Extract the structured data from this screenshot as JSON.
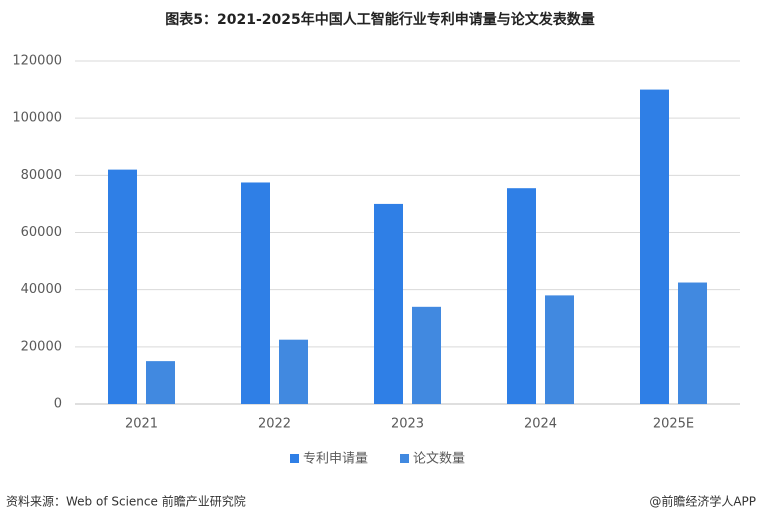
{
  "chart_data": {
    "type": "bar",
    "title": "图表5：2021-2025年中国人工智能行业专利申请量与论文发表数量",
    "categories": [
      "2021",
      "2022",
      "2023",
      "2024",
      "2025E"
    ],
    "series": [
      {
        "name": "专利申请量",
        "color": "#2f7fe6",
        "values": [
          82000,
          77500,
          70000,
          75500,
          110000
        ]
      },
      {
        "name": "论文数量",
        "color": "#4189e0",
        "values": [
          15000,
          22500,
          34000,
          38000,
          42500
        ]
      }
    ],
    "ylim": [
      0,
      120000
    ],
    "yticks": [
      0,
      20000,
      40000,
      60000,
      80000,
      100000,
      120000
    ],
    "grid": true,
    "legend": "bottom",
    "source": "资料来源：Web of Science 前瞻产业研究院",
    "credit": "@前瞻经济学人APP"
  }
}
